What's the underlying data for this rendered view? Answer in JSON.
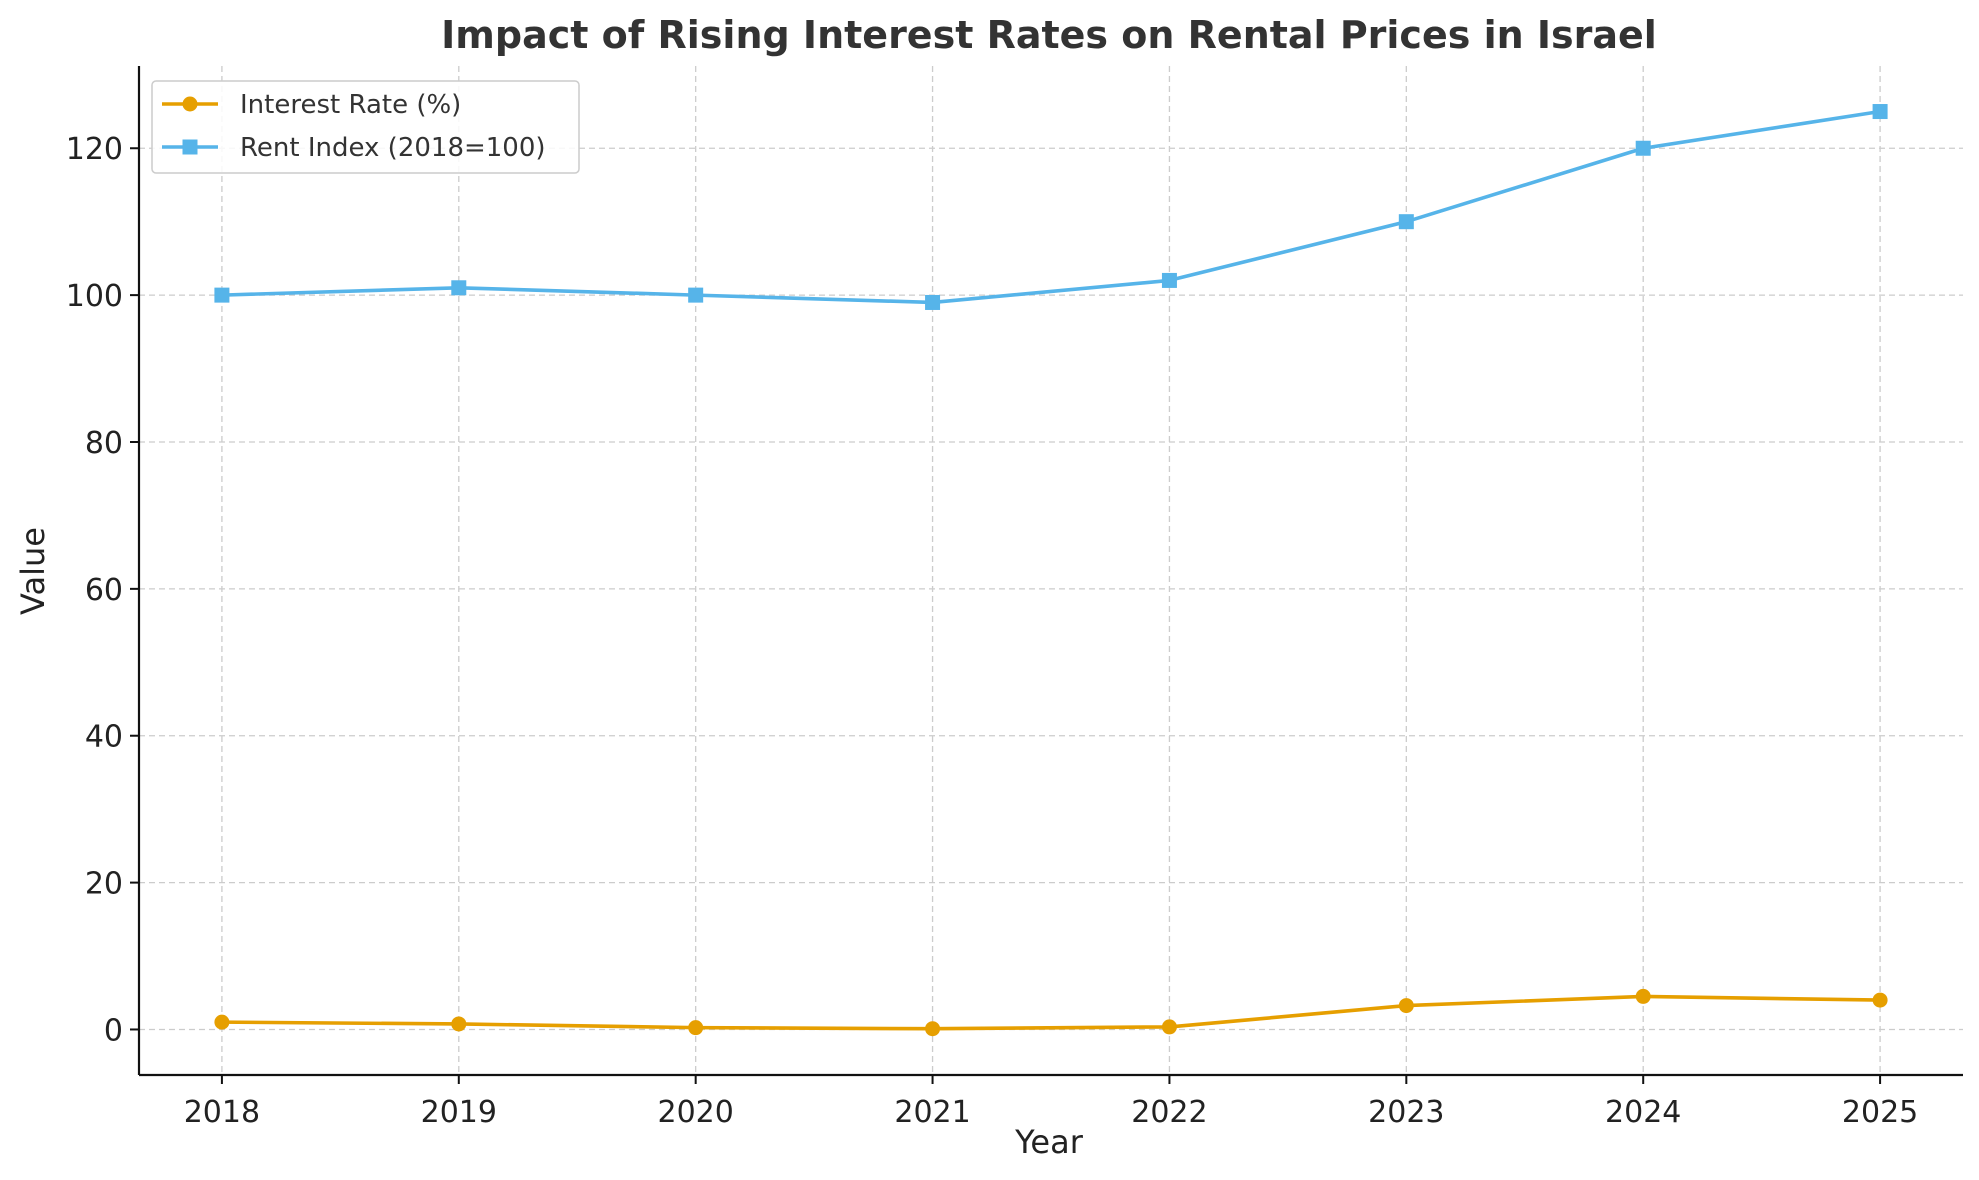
{
  "chart_data": {
    "type": "line",
    "title": "Impact of Rising Interest Rates on Rental Prices in Israel",
    "xlabel": "Year",
    "ylabel": "Value",
    "x": [
      2018,
      2019,
      2020,
      2021,
      2022,
      2023,
      2024,
      2025
    ],
    "x_ticks": [
      "2018",
      "2019",
      "2020",
      "2021",
      "2022",
      "2023",
      "2024",
      "2025"
    ],
    "y_ticks": [
      "0",
      "20",
      "40",
      "60",
      "80",
      "100",
      "120"
    ],
    "xlim": [
      2017.65,
      2025.35
    ],
    "ylim": [
      -6.2,
      131.2
    ],
    "grid": true,
    "legend_position": "upper-left",
    "series": [
      {
        "name": "Interest Rate (%)",
        "color": "#E69F00",
        "marker": "circle",
        "values": [
          1.0,
          0.75,
          0.25,
          0.1,
          0.35,
          3.25,
          4.5,
          4.0
        ]
      },
      {
        "name": "Rent Index (2018=100)",
        "color": "#56B4E9",
        "marker": "square",
        "values": [
          100,
          101,
          100,
          99,
          102,
          110,
          120,
          125
        ]
      }
    ]
  }
}
